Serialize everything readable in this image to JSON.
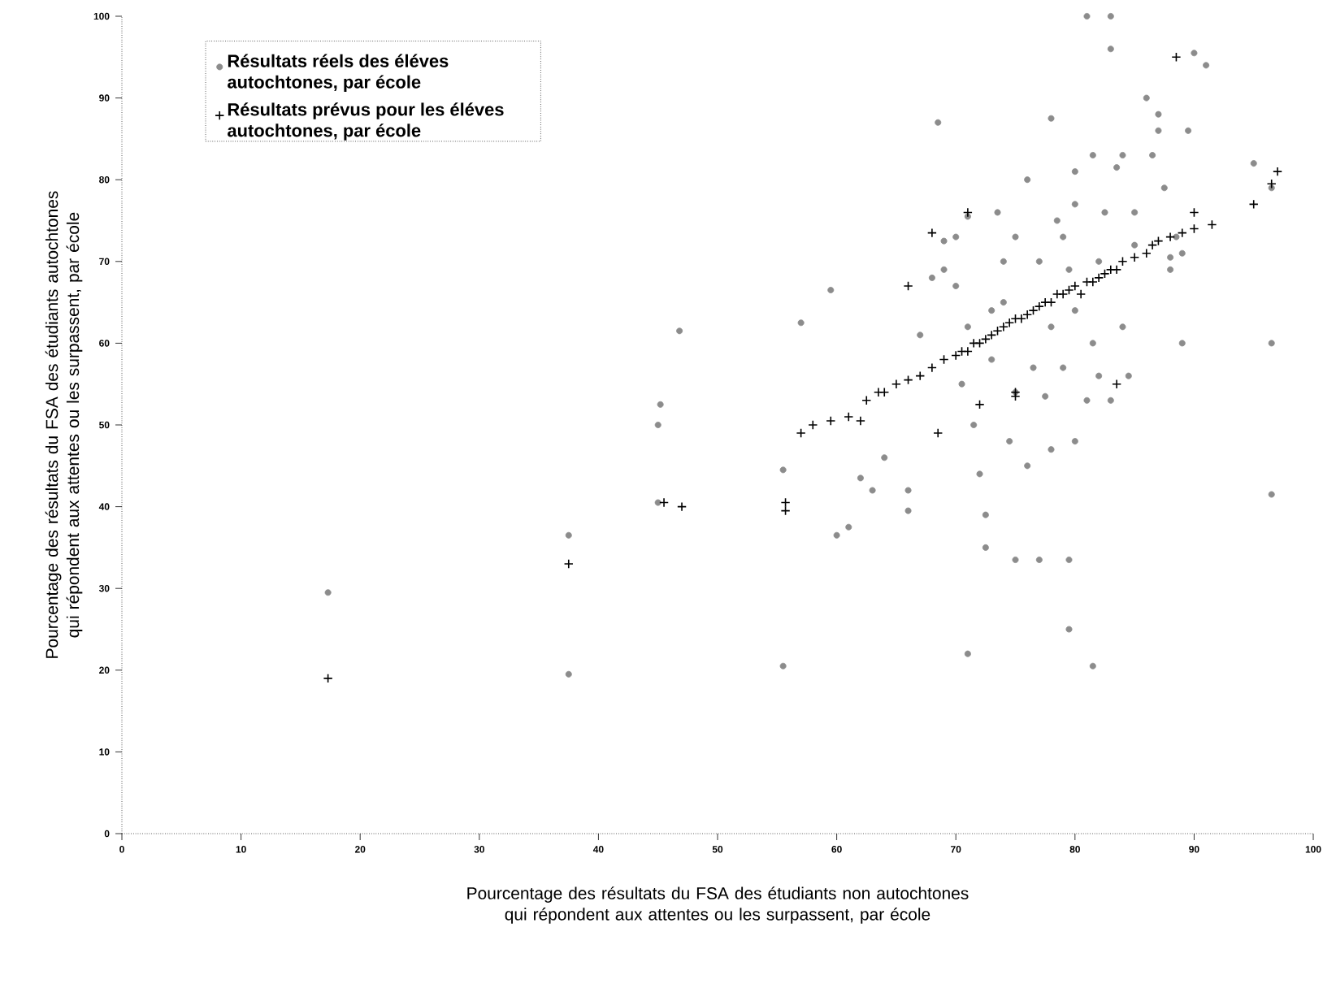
{
  "chart_data": {
    "type": "scatter",
    "xlabel": "Pourcentage des résultats du FSA des étudiants non autochtones qui répondent aux attentes ou les surpassent, par école",
    "ylabel": "Pourcentage des résultats du FSA des étudiants autochtones qui répondent aux attentes ou les surpassent, par école",
    "xlim": [
      0,
      100
    ],
    "ylim": [
      0,
      100
    ],
    "xticks": [
      0,
      10,
      20,
      30,
      40,
      50,
      60,
      70,
      80,
      90,
      100
    ],
    "yticks": [
      0,
      10,
      20,
      30,
      40,
      50,
      60,
      70,
      80,
      90,
      100
    ],
    "grid": false,
    "legend": "top left",
    "series": [
      {
        "name": "Résultats réels des éléves autochtones, par école",
        "color": "#8c8c8c",
        "marker": "circle",
        "x": [
          17.3,
          37.5,
          37.5,
          45.2,
          45,
          46.8,
          45,
          55.5,
          55.5,
          57,
          59.5,
          60,
          61,
          62,
          63,
          64,
          66,
          66,
          67,
          68,
          68.5,
          69,
          69,
          70,
          70,
          70.5,
          71,
          71,
          71,
          71.5,
          72,
          72.5,
          72.5,
          73,
          73,
          73.5,
          74,
          74,
          74.5,
          75,
          75,
          75,
          76,
          76,
          76.5,
          77,
          77,
          77.5,
          78,
          78,
          78,
          78.5,
          79,
          79,
          79.5,
          79.5,
          79.5,
          80,
          80,
          80,
          80,
          81,
          81,
          81.5,
          81.5,
          81.5,
          82,
          82,
          82.5,
          83,
          83,
          83,
          83.5,
          84,
          84,
          84.5,
          85,
          85,
          86,
          86.5,
          87,
          87,
          87.5,
          88,
          88,
          88.5,
          89,
          89,
          89.5,
          90,
          91,
          95,
          96.5,
          96.5,
          96.5
        ],
        "values": [
          29.5,
          36.5,
          19.5,
          52.5,
          50,
          61.5,
          40.5,
          20.5,
          44.5,
          62.5,
          66.5,
          36.5,
          37.5,
          43.5,
          42,
          46,
          42,
          39.5,
          61,
          68,
          87,
          72.5,
          69,
          73,
          67,
          55,
          62,
          75.5,
          22,
          50,
          44,
          39,
          35,
          64,
          58,
          76,
          70,
          65,
          48,
          33.5,
          54,
          73,
          80,
          45,
          57,
          33.5,
          70,
          53.5,
          87.5,
          62,
          47,
          75,
          73,
          57,
          33.5,
          25,
          69,
          77,
          48,
          81,
          64,
          100,
          53,
          20.5,
          60,
          83,
          70,
          56,
          76,
          100,
          96,
          53,
          81.5,
          83,
          62,
          56,
          72,
          76,
          90,
          83,
          88,
          86,
          79,
          69,
          70.5,
          73,
          71,
          60,
          86,
          95.5,
          94,
          82,
          79,
          60,
          41.5
        ]
      },
      {
        "name": "Résultats prévus pour les éléves autochtones, par école",
        "color": "#000000",
        "marker": "cross",
        "x": [
          17.3,
          37.5,
          45.5,
          47,
          55.7,
          55.7,
          57,
          58,
          59.5,
          61,
          62,
          62.5,
          63.5,
          64,
          65,
          66,
          67,
          68,
          68.5,
          69,
          70,
          70.5,
          71,
          71.5,
          72,
          72,
          72.5,
          73,
          73.5,
          74,
          74.5,
          75,
          75,
          75.5,
          76,
          76.5,
          77,
          77.5,
          78,
          78.5,
          79,
          79.5,
          80,
          80.5,
          81,
          81.5,
          82,
          82.5,
          83,
          83.5,
          84,
          85,
          86,
          86.5,
          87,
          88,
          89,
          90,
          90,
          91.5,
          95,
          96.5,
          97,
          68,
          66,
          88.5,
          71,
          83.5,
          75
        ],
        "values": [
          19,
          33,
          40.5,
          40,
          39.5,
          40.5,
          49,
          50,
          50.5,
          51,
          50.5,
          53,
          54,
          54,
          55,
          55.5,
          56,
          57,
          49,
          58,
          58.5,
          59,
          59,
          60,
          52.5,
          60,
          60.5,
          61,
          61.5,
          62,
          62.5,
          54,
          63,
          63,
          63.5,
          64,
          64.5,
          65,
          65,
          66,
          66,
          66.5,
          67,
          66,
          67.5,
          67.5,
          68,
          68.5,
          69,
          69,
          70,
          70.5,
          71,
          72,
          72.5,
          73,
          73.5,
          74,
          76,
          74.5,
          77,
          79.5,
          81,
          73.5,
          67,
          95,
          76,
          55,
          53.5
        ]
      }
    ]
  }
}
